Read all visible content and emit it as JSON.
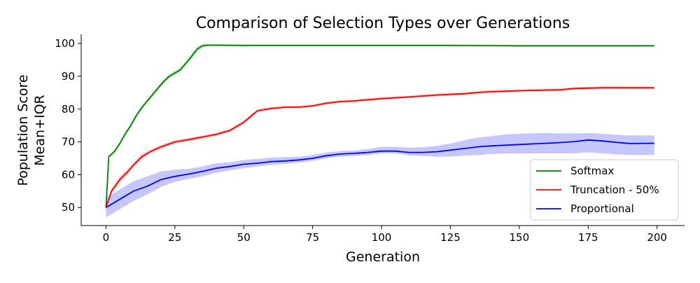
{
  "chart_data": {
    "type": "line",
    "title": "Comparison of Selection Types over Generations",
    "xlabel": "Generation",
    "ylabel_lines": [
      "Population Score",
      "Mean+IQR"
    ],
    "xlim": [
      -9,
      210
    ],
    "ylim": [
      44.5,
      102.8
    ],
    "xticks": [
      0,
      25,
      50,
      75,
      100,
      125,
      150,
      175,
      200
    ],
    "yticks": [
      50,
      60,
      70,
      80,
      90,
      100
    ],
    "grid": false,
    "legend_position": "lower-right",
    "series": [
      {
        "name": "Softmax",
        "color": "#008000",
        "fill_color": "#008000",
        "x": [
          0,
          1,
          3,
          5,
          7,
          9,
          11,
          13,
          15,
          17,
          19,
          21,
          23,
          25,
          27,
          29,
          31,
          33,
          35,
          37,
          40,
          50,
          75,
          100,
          125,
          150,
          175,
          199
        ],
        "y": [
          50,
          65.5,
          67,
          69.5,
          72.5,
          75,
          78,
          80.5,
          82.5,
          84.5,
          86.5,
          88.5,
          90,
          91,
          92,
          94,
          96,
          98.2,
          99.3,
          99.5,
          99.5,
          99.4,
          99.4,
          99.4,
          99.4,
          99.3,
          99.3,
          99.3
        ],
        "band_low": [
          49.8,
          65.1,
          66.5,
          69,
          72,
          74.4,
          77.4,
          79.9,
          81.9,
          83.8,
          85.8,
          87.8,
          89.3,
          90.4,
          91.3,
          93.2,
          95.2,
          97.4,
          98.8,
          99.2,
          99.2,
          99.1,
          99.1,
          99.1,
          99.1,
          99,
          99,
          99
        ],
        "band_high": [
          50.2,
          65.9,
          67.5,
          70,
          73,
          75.6,
          78.6,
          81.1,
          83.1,
          85.2,
          87.2,
          89.2,
          90.7,
          91.6,
          92.7,
          94.8,
          96.8,
          99,
          99.8,
          99.8,
          99.8,
          99.7,
          99.7,
          99.7,
          99.7,
          99.6,
          99.6,
          99.6
        ]
      },
      {
        "name": "Truncation - 50%",
        "color": "#ff0000",
        "fill_color": "#ff0000",
        "x": [
          0,
          2,
          5,
          8,
          10,
          13,
          16,
          20,
          25,
          30,
          35,
          40,
          45,
          50,
          55,
          60,
          65,
          70,
          75,
          80,
          85,
          90,
          100,
          110,
          120,
          130,
          137,
          140,
          150,
          160,
          165,
          170,
          175,
          180,
          190,
          199
        ],
        "y": [
          50,
          55,
          58.5,
          61,
          63,
          65.5,
          67,
          68.5,
          70,
          70.7,
          71.5,
          72.3,
          73.5,
          76,
          79.5,
          80.2,
          80.6,
          80.6,
          81,
          81.8,
          82.3,
          82.5,
          83.2,
          83.7,
          84.3,
          84.7,
          85.2,
          85.3,
          85.6,
          85.8,
          85.9,
          86.3,
          86.4,
          86.5,
          86.5,
          86.5
        ],
        "band_low": [
          49.8,
          54.2,
          57.6,
          60.2,
          62.3,
          64.8,
          66.4,
          67.9,
          69.5,
          70.2,
          71,
          71.8,
          73,
          75.4,
          79,
          79.8,
          80.2,
          80.2,
          80.6,
          81.4,
          81.9,
          82.1,
          82.8,
          83.3,
          83.9,
          84.3,
          84.8,
          84.9,
          85.2,
          85.4,
          85.5,
          85.9,
          86,
          86.1,
          86.1,
          86.1
        ],
        "band_high": [
          50.2,
          55.8,
          59.4,
          61.8,
          63.7,
          66.2,
          67.6,
          69.1,
          70.5,
          71.2,
          72,
          72.8,
          74,
          76.6,
          80,
          80.6,
          81,
          81,
          81.4,
          82.2,
          82.7,
          82.9,
          83.6,
          84.1,
          84.7,
          85.1,
          85.6,
          85.7,
          86,
          86.2,
          86.3,
          86.7,
          86.8,
          86.9,
          86.9,
          86.9
        ]
      },
      {
        "name": "Proportional",
        "color": "#0000ff",
        "fill_color": "#0000ff",
        "x": [
          0,
          3,
          6,
          10,
          15,
          20,
          25,
          30,
          35,
          40,
          45,
          50,
          55,
          60,
          65,
          70,
          75,
          80,
          85,
          90,
          95,
          100,
          105,
          110,
          115,
          120,
          125,
          130,
          135,
          140,
          145,
          150,
          155,
          160,
          165,
          170,
          175,
          180,
          185,
          190,
          199
        ],
        "y": [
          50,
          51.5,
          53,
          55,
          56.5,
          58.5,
          59.5,
          60.2,
          61,
          62,
          62.5,
          63.2,
          63.5,
          64,
          64.2,
          64.5,
          65,
          65.8,
          66.3,
          66.5,
          66.8,
          67.2,
          67.2,
          66.8,
          66.8,
          67,
          67.5,
          68,
          68.5,
          68.8,
          69,
          69.2,
          69.4,
          69.6,
          69.8,
          70.1,
          70.6,
          70.3,
          69.9,
          69.5,
          69.6
        ],
        "band_low": [
          47,
          48.5,
          50,
          52,
          54,
          56.3,
          57.8,
          58.7,
          59.5,
          60.6,
          61.3,
          62,
          62.5,
          63,
          63.3,
          63.7,
          64.2,
          65,
          65.5,
          65.7,
          66,
          66.5,
          66.5,
          65.9,
          65.7,
          65.5,
          65.5,
          65.8,
          66,
          66.3,
          66.5,
          66.5,
          66.5,
          66.5,
          66.5,
          66.5,
          66.8,
          66.5,
          66.2,
          66,
          66
        ],
        "band_high": [
          53,
          54.5,
          56,
          58,
          59.5,
          61,
          61.5,
          61.8,
          62.5,
          63.5,
          63.8,
          64.5,
          64.8,
          65.2,
          65.4,
          65.5,
          66,
          66.8,
          67.2,
          67.4,
          67.8,
          68.5,
          68.5,
          68.3,
          68.4,
          68.8,
          69.5,
          70.5,
          71.3,
          71.8,
          72.3,
          72.5,
          72.6,
          72.7,
          72.6,
          72.6,
          72.7,
          72.5,
          72.2,
          72,
          72
        ]
      }
    ]
  }
}
